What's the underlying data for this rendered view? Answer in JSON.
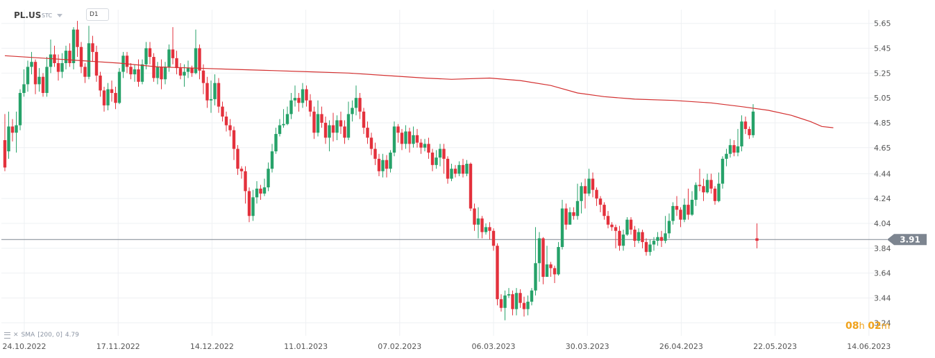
{
  "header": {
    "symbol": "PL.US",
    "instrument_type": "STC",
    "timeframe": "D1"
  },
  "indicator": {
    "label": "SMA",
    "params": "[200, 0]",
    "value": "4.79"
  },
  "timer": {
    "hours": "08",
    "hours_unit": "h",
    "minutes": "02",
    "minutes_unit": "m"
  },
  "colors": {
    "up": "#26a269",
    "down": "#e3313c",
    "sma": "#d32f2f",
    "price_line": "#7d8590",
    "price_badge": "#7d8590",
    "grid": "#eef0f3",
    "axis_text": "#555555",
    "timer": "#f0a21b"
  },
  "chart_data": {
    "type": "candlestick",
    "title": "",
    "y_range": [
      3.18,
      5.76
    ],
    "y_ticks": [
      3.24,
      3.44,
      3.64,
      3.84,
      4.04,
      4.24,
      4.44,
      4.65,
      4.85,
      5.05,
      5.25,
      5.45,
      5.65
    ],
    "x_ticks": [
      "24.10.2022",
      "17.11.2022",
      "14.12.2022",
      "11.01.2023",
      "07.02.2023",
      "06.03.2023",
      "30.03.2023",
      "26.04.2023",
      "22.05.2023",
      "14.06.2023"
    ],
    "current_price": "3.91",
    "grid": true,
    "candles": [
      [
        4.71,
        4.49,
        4.92,
        4.46
      ],
      [
        4.62,
        4.82,
        4.94,
        4.56
      ],
      [
        4.82,
        4.77,
        4.88,
        4.7
      ],
      [
        4.77,
        4.83,
        4.94,
        4.61
      ],
      [
        4.83,
        5.09,
        5.12,
        4.79
      ],
      [
        5.09,
        5.16,
        5.28,
        5.06
      ],
      [
        5.16,
        5.3,
        5.35,
        5.1
      ],
      [
        5.3,
        5.34,
        5.42,
        5.24
      ],
      [
        5.34,
        5.16,
        5.36,
        5.08
      ],
      [
        5.16,
        5.22,
        5.29,
        5.1
      ],
      [
        5.22,
        5.09,
        5.25,
        5.06
      ],
      [
        5.09,
        5.3,
        5.38,
        5.06
      ],
      [
        5.3,
        5.4,
        5.52,
        5.25
      ],
      [
        5.4,
        5.33,
        5.47,
        5.3
      ],
      [
        5.33,
        5.26,
        5.4,
        5.19
      ],
      [
        5.26,
        5.33,
        5.41,
        5.21
      ],
      [
        5.33,
        5.43,
        5.47,
        5.28
      ],
      [
        5.43,
        5.33,
        5.49,
        5.3
      ],
      [
        5.33,
        5.6,
        5.62,
        5.28
      ],
      [
        5.6,
        5.46,
        5.67,
        5.38
      ],
      [
        5.46,
        5.3,
        5.5,
        5.25
      ],
      [
        5.3,
        5.22,
        5.33,
        5.17
      ],
      [
        5.22,
        5.49,
        5.63,
        5.2
      ],
      [
        5.49,
        5.42,
        5.55,
        5.34
      ],
      [
        5.42,
        5.23,
        5.47,
        5.18
      ],
      [
        5.23,
        5.11,
        5.26,
        5.06
      ],
      [
        5.11,
        4.99,
        5.14,
        4.94
      ],
      [
        4.99,
        5.12,
        5.17,
        4.95
      ],
      [
        5.12,
        5.09,
        5.19,
        5.02
      ],
      [
        5.09,
        5.01,
        5.14,
        4.96
      ],
      [
        5.01,
        5.26,
        5.29,
        5.0
      ],
      [
        5.26,
        5.39,
        5.42,
        5.21
      ],
      [
        5.39,
        5.3,
        5.42,
        5.25
      ],
      [
        5.3,
        5.24,
        5.33,
        5.2
      ],
      [
        5.24,
        5.28,
        5.32,
        5.18
      ],
      [
        5.28,
        5.18,
        5.36,
        5.14
      ],
      [
        5.18,
        5.32,
        5.36,
        5.16
      ],
      [
        5.32,
        5.45,
        5.5,
        5.28
      ],
      [
        5.45,
        5.38,
        5.5,
        5.32
      ],
      [
        5.38,
        5.21,
        5.41,
        5.18
      ],
      [
        5.21,
        5.3,
        5.34,
        5.16
      ],
      [
        5.3,
        5.2,
        5.36,
        5.12
      ],
      [
        5.2,
        5.3,
        5.34,
        5.16
      ],
      [
        5.3,
        5.44,
        5.48,
        5.26
      ],
      [
        5.44,
        5.37,
        5.62,
        5.32
      ],
      [
        5.37,
        5.29,
        5.43,
        5.24
      ],
      [
        5.29,
        5.23,
        5.33,
        5.2
      ],
      [
        5.23,
        5.26,
        5.32,
        5.14
      ],
      [
        5.26,
        5.29,
        5.35,
        5.21
      ],
      [
        5.29,
        5.25,
        5.31,
        5.22
      ],
      [
        5.25,
        5.45,
        5.6,
        5.24
      ],
      [
        5.45,
        5.27,
        5.48,
        5.2
      ],
      [
        5.27,
        5.17,
        5.32,
        5.08
      ],
      [
        5.17,
        5.03,
        5.22,
        4.97
      ],
      [
        5.03,
        5.04,
        5.19,
        4.93
      ],
      [
        5.04,
        5.17,
        5.24,
        4.99
      ],
      [
        5.17,
        4.98,
        5.21,
        4.93
      ],
      [
        4.98,
        4.9,
        5.02,
        4.86
      ],
      [
        4.9,
        4.83,
        4.94,
        4.78
      ],
      [
        4.83,
        4.79,
        4.88,
        4.74
      ],
      [
        4.79,
        4.64,
        4.82,
        4.55
      ],
      [
        4.64,
        4.48,
        4.67,
        4.43
      ],
      [
        4.48,
        4.46,
        4.5,
        4.4
      ],
      [
        4.46,
        4.3,
        4.5,
        4.2
      ],
      [
        4.3,
        4.1,
        4.33,
        4.05
      ],
      [
        4.1,
        4.25,
        4.31,
        4.06
      ],
      [
        4.25,
        4.32,
        4.38,
        4.2
      ],
      [
        4.32,
        4.28,
        4.35,
        4.23
      ],
      [
        4.28,
        4.33,
        4.4,
        4.26
      ],
      [
        4.33,
        4.48,
        4.53,
        4.3
      ],
      [
        4.48,
        4.62,
        4.68,
        4.45
      ],
      [
        4.62,
        4.76,
        4.81,
        4.6
      ],
      [
        4.76,
        4.83,
        4.88,
        4.74
      ],
      [
        4.83,
        4.84,
        4.96,
        4.81
      ],
      [
        4.84,
        4.92,
        4.98,
        4.83
      ],
      [
        4.92,
        5.03,
        5.09,
        4.88
      ],
      [
        5.03,
        5.05,
        5.15,
        4.98
      ],
      [
        5.05,
        5.01,
        5.09,
        4.94
      ],
      [
        5.01,
        5.12,
        5.17,
        4.97
      ],
      [
        5.12,
        5.03,
        5.15,
        4.98
      ],
      [
        5.03,
        4.94,
        5.08,
        4.9
      ],
      [
        4.94,
        4.77,
        4.98,
        4.72
      ],
      [
        4.77,
        4.92,
        5.03,
        4.74
      ],
      [
        4.92,
        4.85,
        4.98,
        4.81
      ],
      [
        4.85,
        4.73,
        4.9,
        4.68
      ],
      [
        4.73,
        4.83,
        4.87,
        4.62
      ],
      [
        4.83,
        4.77,
        4.93,
        4.7
      ],
      [
        4.77,
        4.87,
        4.91,
        4.71
      ],
      [
        4.87,
        4.82,
        4.94,
        4.76
      ],
      [
        4.82,
        4.73,
        4.87,
        4.68
      ],
      [
        4.73,
        4.92,
        5.02,
        4.71
      ],
      [
        4.92,
        4.97,
        5.03,
        4.86
      ],
      [
        4.97,
        5.05,
        5.15,
        4.91
      ],
      [
        5.05,
        4.94,
        5.09,
        4.88
      ],
      [
        4.94,
        4.81,
        4.97,
        4.76
      ],
      [
        4.81,
        4.73,
        4.86,
        4.68
      ],
      [
        4.73,
        4.64,
        4.77,
        4.59
      ],
      [
        4.64,
        4.56,
        4.69,
        4.51
      ],
      [
        4.56,
        4.46,
        4.6,
        4.42
      ],
      [
        4.46,
        4.55,
        4.6,
        4.41
      ],
      [
        4.55,
        4.48,
        4.59,
        4.41
      ],
      [
        4.48,
        4.61,
        4.63,
        4.45
      ],
      [
        4.61,
        4.82,
        4.86,
        4.58
      ],
      [
        4.82,
        4.77,
        4.84,
        4.69
      ],
      [
        4.77,
        4.68,
        4.8,
        4.63
      ],
      [
        4.68,
        4.78,
        4.83,
        4.64
      ],
      [
        4.78,
        4.68,
        4.81,
        4.61
      ],
      [
        4.68,
        4.75,
        4.82,
        4.65
      ],
      [
        4.75,
        4.69,
        4.8,
        4.65
      ],
      [
        4.69,
        4.65,
        4.72,
        4.6
      ],
      [
        4.65,
        4.68,
        4.72,
        4.62
      ],
      [
        4.68,
        4.61,
        4.73,
        4.56
      ],
      [
        4.61,
        4.51,
        4.64,
        4.46
      ],
      [
        4.51,
        4.57,
        4.63,
        4.48
      ],
      [
        4.57,
        4.64,
        4.68,
        4.5
      ],
      [
        4.64,
        4.56,
        4.68,
        4.44
      ],
      [
        4.56,
        4.4,
        4.58,
        4.36
      ],
      [
        4.4,
        4.48,
        4.52,
        4.38
      ],
      [
        4.48,
        4.44,
        4.51,
        4.41
      ],
      [
        4.44,
        4.51,
        4.54,
        4.42
      ],
      [
        4.51,
        4.44,
        4.56,
        4.41
      ],
      [
        4.44,
        4.52,
        4.55,
        4.42
      ],
      [
        4.52,
        4.16,
        4.53,
        4.14
      ],
      [
        4.16,
        4.03,
        4.2,
        3.98
      ],
      [
        4.03,
        4.08,
        4.17,
        3.92
      ],
      [
        4.08,
        3.97,
        4.1,
        3.92
      ],
      [
        3.97,
        4.01,
        4.04,
        3.95
      ],
      [
        4.01,
        3.98,
        4.05,
        3.91
      ],
      [
        3.98,
        3.86,
        4.0,
        3.82
      ],
      [
        3.86,
        3.43,
        3.88,
        3.38
      ],
      [
        3.43,
        3.36,
        3.47,
        3.33
      ],
      [
        3.36,
        3.46,
        3.5,
        3.26
      ],
      [
        3.46,
        3.47,
        3.52,
        3.44
      ],
      [
        3.47,
        3.35,
        3.5,
        3.3
      ],
      [
        3.35,
        3.48,
        3.52,
        3.3
      ],
      [
        3.48,
        3.4,
        3.51,
        3.36
      ],
      [
        3.4,
        3.35,
        3.45,
        3.29
      ],
      [
        3.35,
        3.41,
        3.46,
        3.3
      ],
      [
        3.41,
        3.5,
        3.52,
        3.38
      ],
      [
        3.5,
        3.72,
        4.01,
        3.46
      ],
      [
        3.72,
        3.92,
        3.97,
        3.57
      ],
      [
        3.92,
        3.61,
        3.93,
        3.55
      ],
      [
        3.61,
        3.71,
        3.86,
        3.61
      ],
      [
        3.71,
        3.68,
        3.73,
        3.61
      ],
      [
        3.68,
        3.63,
        3.7,
        3.56
      ],
      [
        3.63,
        3.85,
        3.89,
        3.62
      ],
      [
        3.85,
        4.16,
        4.23,
        3.83
      ],
      [
        4.16,
        4.03,
        4.2,
        3.99
      ],
      [
        4.03,
        4.13,
        4.17,
        4.03
      ],
      [
        4.13,
        4.1,
        4.17,
        4.07
      ],
      [
        4.1,
        4.22,
        4.36,
        4.07
      ],
      [
        4.22,
        4.34,
        4.37,
        4.12
      ],
      [
        4.34,
        4.28,
        4.4,
        4.16
      ],
      [
        4.28,
        4.4,
        4.48,
        4.26
      ],
      [
        4.4,
        4.31,
        4.45,
        4.25
      ],
      [
        4.31,
        4.24,
        4.33,
        4.18
      ],
      [
        4.24,
        4.19,
        4.26,
        4.13
      ],
      [
        4.19,
        4.1,
        4.21,
        4.07
      ],
      [
        4.1,
        4.03,
        4.14,
        4.0
      ],
      [
        4.03,
        4.01,
        4.05,
        3.98
      ],
      [
        4.01,
        3.98,
        4.03,
        3.84
      ],
      [
        3.98,
        3.86,
        4.02,
        3.82
      ],
      [
        3.86,
        3.95,
        3.99,
        3.82
      ],
      [
        3.95,
        4.07,
        4.09,
        3.94
      ],
      [
        4.07,
        3.99,
        4.09,
        3.95
      ],
      [
        3.99,
        3.9,
        4.02,
        3.85
      ],
      [
        3.9,
        3.97,
        4.0,
        3.88
      ],
      [
        3.97,
        3.89,
        3.99,
        3.84
      ],
      [
        3.89,
        3.81,
        3.92,
        3.78
      ],
      [
        3.81,
        3.87,
        3.91,
        3.78
      ],
      [
        3.87,
        3.9,
        3.93,
        3.82
      ],
      [
        3.9,
        3.93,
        3.97,
        3.86
      ],
      [
        3.93,
        3.9,
        3.98,
        3.85
      ],
      [
        3.9,
        3.96,
        4.1,
        3.88
      ],
      [
        3.96,
        4.06,
        4.12,
        3.92
      ],
      [
        4.06,
        4.18,
        4.21,
        4.03
      ],
      [
        4.18,
        4.15,
        4.26,
        4.1
      ],
      [
        4.15,
        4.07,
        4.17,
        4.01
      ],
      [
        4.07,
        4.19,
        4.24,
        4.05
      ],
      [
        4.19,
        4.11,
        4.32,
        4.07
      ],
      [
        4.11,
        4.23,
        4.3,
        4.1
      ],
      [
        4.23,
        4.35,
        4.37,
        4.18
      ],
      [
        4.35,
        4.34,
        4.48,
        4.3
      ],
      [
        4.34,
        4.29,
        4.4,
        4.22
      ],
      [
        4.29,
        4.39,
        4.44,
        4.28
      ],
      [
        4.39,
        4.32,
        4.44,
        4.28
      ],
      [
        4.32,
        4.22,
        4.34,
        4.19
      ],
      [
        4.22,
        4.36,
        4.45,
        4.21
      ],
      [
        4.36,
        4.56,
        4.58,
        4.32
      ],
      [
        4.56,
        4.6,
        4.64,
        4.5
      ],
      [
        4.6,
        4.67,
        4.72,
        4.57
      ],
      [
        4.67,
        4.61,
        4.71,
        4.58
      ],
      [
        4.61,
        4.66,
        4.8,
        4.58
      ],
      [
        4.66,
        4.86,
        4.91,
        4.62
      ],
      [
        4.86,
        4.8,
        4.9,
        4.76
      ],
      [
        4.8,
        4.75,
        4.82,
        4.72
      ],
      [
        4.75,
        4.94,
        5.0,
        4.73
      ],
      [
        3.92,
        3.9,
        4.04,
        3.84
      ]
    ],
    "sma": {
      "name": "SMA [200, 0]",
      "points": [
        [
          0,
          5.39
        ],
        [
          10,
          5.37
        ],
        [
          20,
          5.35
        ],
        [
          30,
          5.33
        ],
        [
          40,
          5.3
        ],
        [
          50,
          5.29
        ],
        [
          60,
          5.28
        ],
        [
          70,
          5.27
        ],
        [
          80,
          5.26
        ],
        [
          90,
          5.25
        ],
        [
          100,
          5.23
        ],
        [
          110,
          5.21
        ],
        [
          117,
          5.2
        ],
        [
          127,
          5.21
        ],
        [
          135,
          5.19
        ],
        [
          143,
          5.15
        ],
        [
          150,
          5.09
        ],
        [
          157,
          5.06
        ],
        [
          165,
          5.04
        ],
        [
          175,
          5.03
        ],
        [
          185,
          5.01
        ],
        [
          193,
          4.98
        ],
        [
          200,
          4.95
        ],
        [
          206,
          4.91
        ],
        [
          211,
          4.86
        ],
        [
          214,
          4.82
        ],
        [
          217,
          4.81
        ]
      ]
    }
  }
}
